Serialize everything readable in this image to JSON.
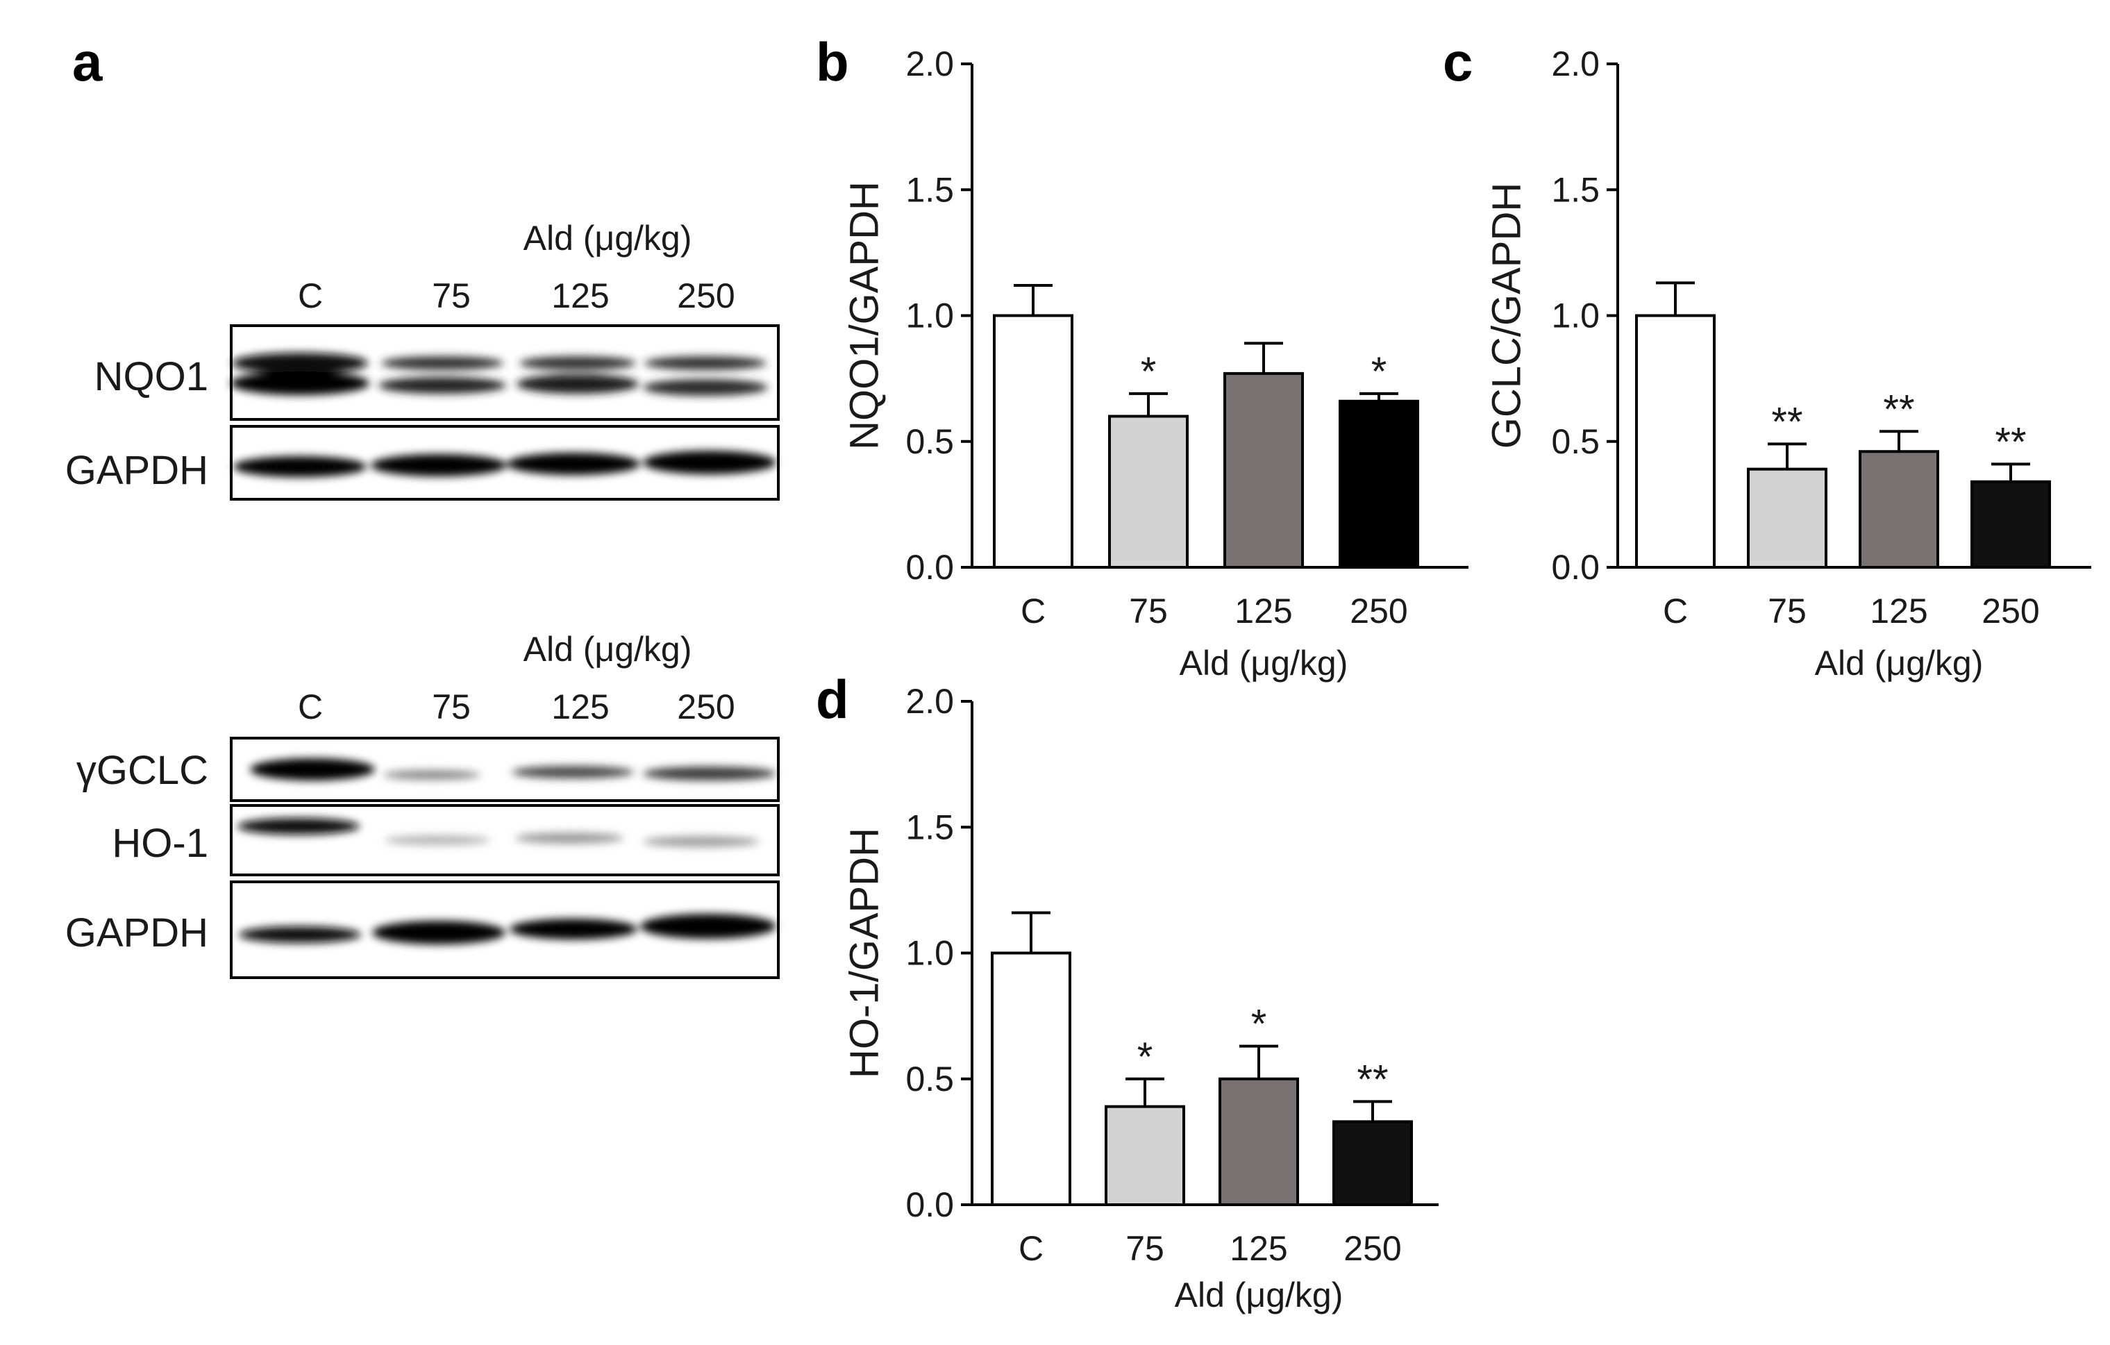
{
  "panels": {
    "a": {
      "letter": "a",
      "blot_top": {
        "group_label": "Ald (μg/kg)",
        "lanes": [
          "C",
          "75",
          "125",
          "250"
        ],
        "rows": [
          "NQO1",
          "GAPDH"
        ]
      },
      "blot_bottom": {
        "group_label": "Ald (μg/kg)",
        "lanes": [
          "C",
          "75",
          "125",
          "250"
        ],
        "rows": [
          "γGCLC",
          "HO-1",
          "GAPDH"
        ]
      }
    }
  },
  "chart_data": [
    {
      "panel": "b",
      "type": "bar",
      "categories": [
        "C",
        "75",
        "125",
        "250"
      ],
      "values": [
        1.0,
        0.6,
        0.77,
        0.66
      ],
      "errors": [
        0.12,
        0.09,
        0.12,
        0.03
      ],
      "significance": [
        "",
        "*",
        "",
        "*"
      ],
      "bar_colors": [
        "#ffffff",
        "#d3d3d3",
        "#787272",
        "#000000"
      ],
      "xlabel": "Ald (μg/kg)",
      "ylabel": "NQO1/GAPDH",
      "ylim": [
        0,
        2.0
      ],
      "yticks": [
        "0.0",
        "0.5",
        "1.0",
        "1.5",
        "2.0"
      ]
    },
    {
      "panel": "c",
      "type": "bar",
      "categories": [
        "C",
        "75",
        "125",
        "250"
      ],
      "values": [
        1.0,
        0.39,
        0.46,
        0.34
      ],
      "errors": [
        0.13,
        0.1,
        0.08,
        0.07
      ],
      "significance": [
        "",
        "**",
        "**",
        "**"
      ],
      "bar_colors": [
        "#ffffff",
        "#d3d3d3",
        "#787272",
        "#111111"
      ],
      "xlabel": "Ald (μg/kg)",
      "ylabel": "GCLC/GAPDH",
      "ylim": [
        0,
        2.0
      ],
      "yticks": [
        "0.0",
        "0.5",
        "1.0",
        "1.5",
        "2.0"
      ]
    },
    {
      "panel": "d",
      "type": "bar",
      "categories": [
        "C",
        "75",
        "125",
        "250"
      ],
      "values": [
        1.0,
        0.39,
        0.5,
        0.33
      ],
      "errors": [
        0.16,
        0.11,
        0.13,
        0.08
      ],
      "significance": [
        "",
        "*",
        "*",
        "**"
      ],
      "bar_colors": [
        "#ffffff",
        "#d3d3d3",
        "#787272",
        "#111111"
      ],
      "xlabel": "Ald (μg/kg)",
      "ylabel": "HO-1/GAPDH",
      "ylim": [
        0,
        2.0
      ],
      "yticks": [
        "0.0",
        "0.5",
        "1.0",
        "1.5",
        "2.0"
      ]
    }
  ]
}
